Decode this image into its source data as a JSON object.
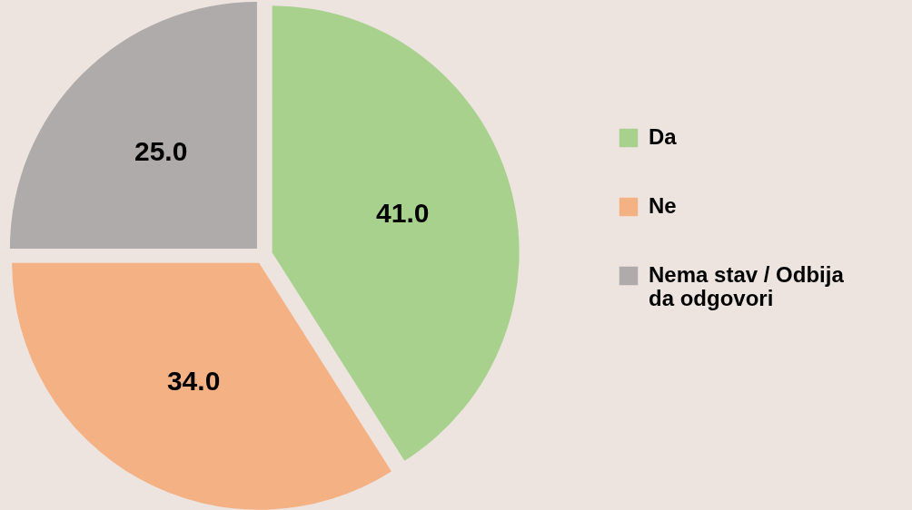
{
  "chart_data": {
    "type": "pie",
    "categories": [
      "Da",
      "Ne",
      "Nema stav / Odbija da odgovori"
    ],
    "values": [
      41.0,
      34.0,
      25.0
    ],
    "value_labels": [
      "41.0",
      "34.0",
      "25.0"
    ],
    "colors": [
      "#a9d18e",
      "#f4b183",
      "#afabab"
    ],
    "legend": "right"
  }
}
